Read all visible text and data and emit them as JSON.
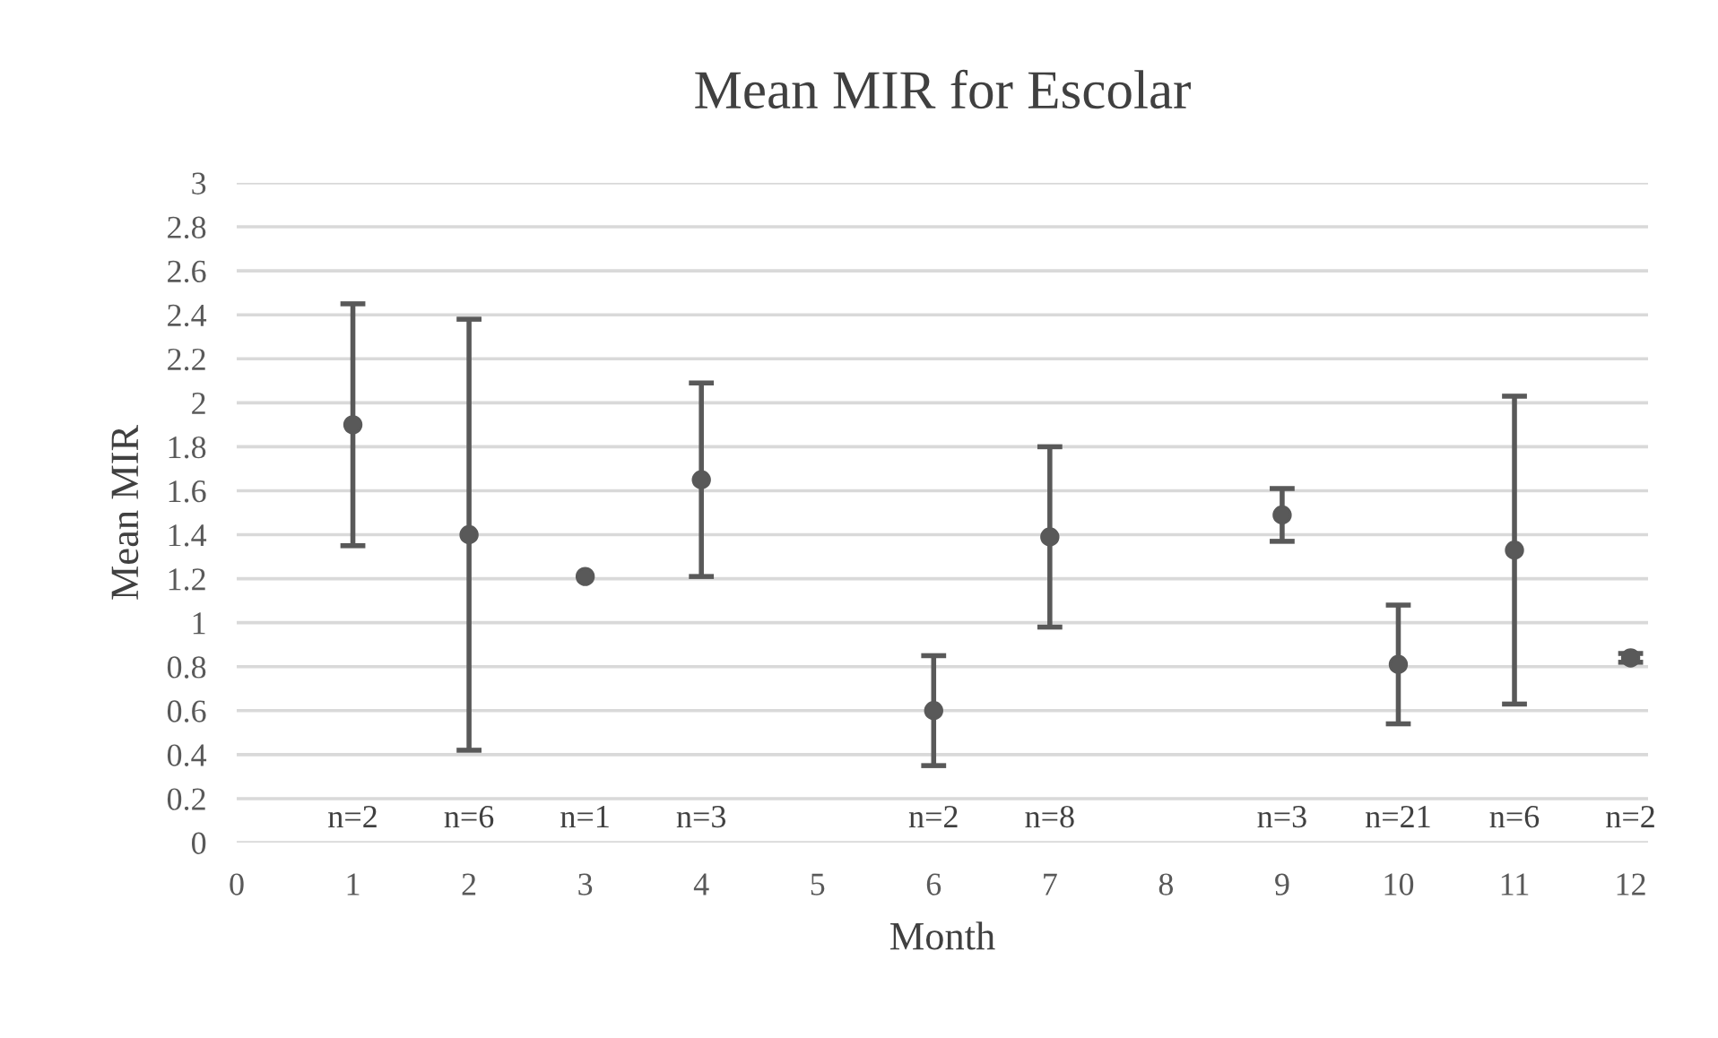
{
  "chart_data": {
    "type": "scatter",
    "title": "Mean MIR for Escolar",
    "xlabel": "Month",
    "ylabel": "Mean MIR",
    "x": [
      1,
      2,
      3,
      4,
      6,
      7,
      9,
      10,
      11,
      12
    ],
    "series": [
      {
        "color": "#595959",
        "values": [
          1.9,
          1.4,
          1.21,
          1.65,
          0.6,
          1.39,
          1.49,
          0.81,
          1.33,
          0.84
        ],
        "errors": [
          0.55,
          0.98,
          null,
          0.44,
          0.25,
          0.41,
          0.12,
          0.27,
          0.7,
          0.02
        ]
      }
    ],
    "xlim": [
      0,
      12.15
    ],
    "xticks": [
      0,
      1,
      2,
      3,
      4,
      5,
      6,
      7,
      8,
      9,
      10,
      11,
      12
    ],
    "ylim": [
      0,
      3
    ],
    "yticks": [
      0,
      0.2,
      0.4,
      0.6,
      0.8,
      1,
      1.2,
      1.4,
      1.6,
      1.8,
      2,
      2.2,
      2.4,
      2.6,
      2.8,
      3
    ],
    "grid": "y",
    "marker": "circle",
    "annotations": [
      "n=2",
      "n=6",
      "n=1",
      "n=3",
      "n=2",
      "n=8",
      "n=3",
      "n=21",
      "n=6",
      "n=2"
    ]
  }
}
